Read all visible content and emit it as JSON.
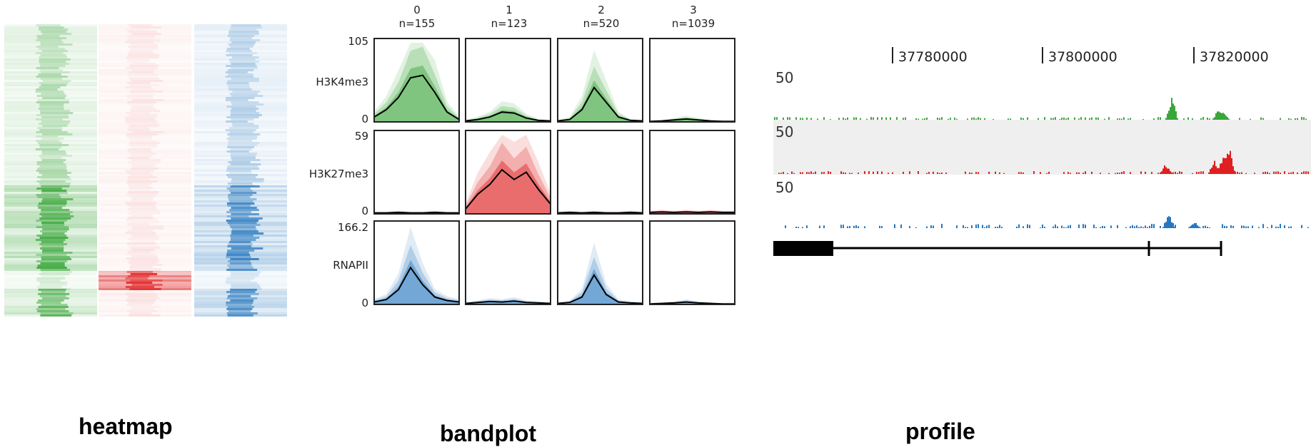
{
  "colors": {
    "green": "#3aa63a",
    "red": "#e02020",
    "blue": "#2878be",
    "profile_bg": "#efefef",
    "frame": "#222222",
    "median": "#000000"
  },
  "heatmap": {
    "caption": "heatmap",
    "tracks": [
      "H3K4me3",
      "H3K27me3",
      "RNAPII"
    ]
  },
  "bandplot": {
    "caption": "bandplot",
    "clusters": [
      {
        "id": "0",
        "n": "n=155"
      },
      {
        "id": "1",
        "n": "n=123"
      },
      {
        "id": "2",
        "n": "n=520"
      },
      {
        "id": "3",
        "n": "n=1039"
      }
    ],
    "tracks": [
      {
        "name": "H3K4me3",
        "ymax": "105",
        "ymin": "0"
      },
      {
        "name": "H3K27me3",
        "ymax": "59",
        "ymin": "0"
      },
      {
        "name": "RNAPII",
        "ymax": "166.2",
        "ymin": "0"
      }
    ]
  },
  "profile": {
    "caption": "profile",
    "coords": [
      "37780000",
      "37800000",
      "37820000"
    ],
    "track_max": [
      "50",
      "50",
      "50"
    ]
  }
}
